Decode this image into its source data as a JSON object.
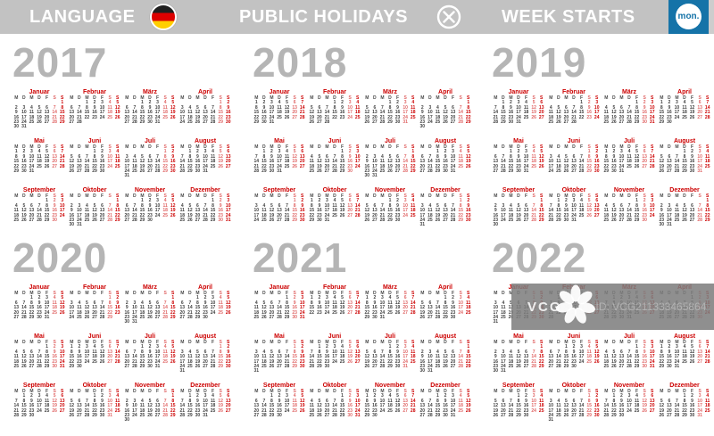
{
  "header": {
    "language_label": "LANGUAGE",
    "holidays_label": "PUBLIC HOLIDAYS",
    "week_starts_label": "WEEK STARTS",
    "week_starts_value": "mon.",
    "language_flag": "german-flag",
    "holidays_state": "disabled"
  },
  "colors": {
    "header_bg": "#c2c2c2",
    "accent_blue": "#1573a8",
    "year_text": "#b5b5b5",
    "month_title": "#cc0000",
    "saturday": "#e06666",
    "sunday": "#cc0000",
    "day_text": "#3f3f3f",
    "flag_black": "#1f1f1f",
    "flag_red": "#dd0000",
    "flag_gold": "#ffce00"
  },
  "weekday_letters": [
    "M",
    "D",
    "M",
    "D",
    "F",
    "S",
    "S"
  ],
  "month_names": [
    "Januar",
    "Februar",
    "März",
    "April",
    "Mai",
    "Juni",
    "Juli",
    "August",
    "September",
    "Oktober",
    "November",
    "Dezember"
  ],
  "years": [
    {
      "label": "2017",
      "months": [
        [
          6,
          31
        ],
        [
          2,
          28
        ],
        [
          2,
          31
        ],
        [
          5,
          30
        ],
        [
          0,
          31
        ],
        [
          3,
          30
        ],
        [
          5,
          31
        ],
        [
          1,
          31
        ],
        [
          4,
          30
        ],
        [
          6,
          31
        ],
        [
          2,
          30
        ],
        [
          4,
          31
        ]
      ]
    },
    {
      "label": "2018",
      "months": [
        [
          0,
          31
        ],
        [
          3,
          28
        ],
        [
          3,
          31
        ],
        [
          6,
          30
        ],
        [
          1,
          31
        ],
        [
          4,
          30
        ],
        [
          6,
          31
        ],
        [
          2,
          31
        ],
        [
          5,
          30
        ],
        [
          0,
          31
        ],
        [
          3,
          30
        ],
        [
          5,
          31
        ]
      ]
    },
    {
      "label": "2019",
      "months": [
        [
          1,
          31
        ],
        [
          4,
          28
        ],
        [
          4,
          31
        ],
        [
          0,
          30
        ],
        [
          2,
          31
        ],
        [
          5,
          30
        ],
        [
          0,
          31
        ],
        [
          3,
          31
        ],
        [
          6,
          30
        ],
        [
          1,
          31
        ],
        [
          4,
          30
        ],
        [
          6,
          31
        ]
      ]
    },
    {
      "label": "2020",
      "months": [
        [
          2,
          31
        ],
        [
          5,
          29
        ],
        [
          6,
          31
        ],
        [
          2,
          30
        ],
        [
          4,
          31
        ],
        [
          0,
          30
        ],
        [
          2,
          31
        ],
        [
          5,
          31
        ],
        [
          1,
          30
        ],
        [
          3,
          31
        ],
        [
          6,
          30
        ],
        [
          1,
          31
        ]
      ]
    },
    {
      "label": "2021",
      "months": [
        [
          4,
          31
        ],
        [
          0,
          28
        ],
        [
          0,
          31
        ],
        [
          3,
          30
        ],
        [
          5,
          31
        ],
        [
          1,
          30
        ],
        [
          3,
          31
        ],
        [
          6,
          31
        ],
        [
          2,
          30
        ],
        [
          4,
          31
        ],
        [
          0,
          30
        ],
        [
          2,
          31
        ]
      ]
    },
    {
      "label": "2022",
      "months": [
        [
          5,
          31
        ],
        [
          1,
          28
        ],
        [
          1,
          31
        ],
        [
          4,
          30
        ],
        [
          6,
          31
        ],
        [
          2,
          30
        ],
        [
          4,
          31
        ],
        [
          0,
          31
        ],
        [
          3,
          30
        ],
        [
          5,
          31
        ],
        [
          1,
          30
        ],
        [
          3,
          31
        ]
      ]
    }
  ],
  "watermark": {
    "logo_text": "VCG",
    "id_text": "ID: VCG211333465864"
  }
}
